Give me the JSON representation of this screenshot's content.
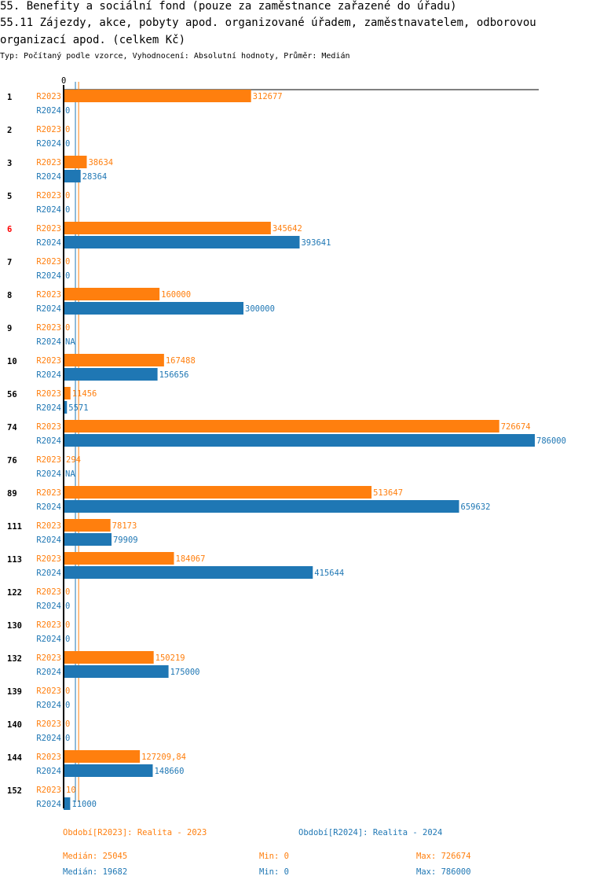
{
  "title_line1": "55. Benefity a sociální fond (pouze za zaměstnance zařazené do úřadu)",
  "title_line2": "55.11 Zájezdy, akce, pobyty apod. organizované úřadem, zaměstnavatelem, odborovou",
  "title_line3": " organizací apod. (celkem Kč)",
  "subtitle": "Typ: Počítaný podle vzorce, Vyhodnocení: Absolutní hodnoty, Průměr: Medián",
  "colors": {
    "R2023": "#ff7f0e",
    "R2024": "#1f77b4",
    "highlight": "#ff0000"
  },
  "chart_data": {
    "type": "bar",
    "orientation": "horizontal",
    "xlim": [
      0,
      786000
    ],
    "x_tick_labels": [
      "0"
    ],
    "highlight_category": "6",
    "categories": [
      "1",
      "2",
      "3",
      "5",
      "6",
      "7",
      "8",
      "9",
      "10",
      "56",
      "74",
      "76",
      "89",
      "111",
      "113",
      "122",
      "130",
      "132",
      "139",
      "140",
      "144",
      "152"
    ],
    "series": [
      {
        "name": "R2023",
        "values": [
          312677,
          0,
          38634,
          0,
          345642,
          0,
          160000,
          0,
          167488,
          11456,
          726674,
          294,
          513647,
          78173,
          184067,
          0,
          0,
          150219,
          0,
          0,
          127209.84,
          10
        ],
        "labels": [
          "312677",
          "0",
          "38634",
          "0",
          "345642",
          "0",
          "160000",
          "0",
          "167488",
          "11456",
          "726674",
          "294",
          "513647",
          "78173",
          "184067",
          "0",
          "0",
          "150219",
          "0",
          "0",
          "127209,84",
          "10"
        ]
      },
      {
        "name": "R2024",
        "values": [
          0,
          0,
          28364,
          0,
          393641,
          0,
          300000,
          null,
          156656,
          5571,
          786000,
          null,
          659632,
          79909,
          415644,
          0,
          0,
          175000,
          0,
          0,
          148660,
          11000
        ],
        "labels": [
          "0",
          "0",
          "28364",
          "0",
          "393641",
          "0",
          "300000",
          "NA",
          "156656",
          "5571",
          "786000",
          "NA",
          "659632",
          "79909",
          "415644",
          "0",
          "0",
          "175000",
          "0",
          "0",
          "148660",
          "11000"
        ]
      }
    ],
    "medians": {
      "R2023": 25045,
      "R2024": 19682
    }
  },
  "legend": {
    "r2023": "Období[R2023]: Realita - 2023",
    "r2024": "Období[R2024]: Realita - 2024",
    "r2023_median": "Medián: 25045",
    "r2023_min": "Min: 0",
    "r2023_max": "Max: 726674",
    "r2024_median": "Medián: 19682",
    "r2024_min": "Min: 0",
    "r2024_max": "Max: 786000"
  }
}
